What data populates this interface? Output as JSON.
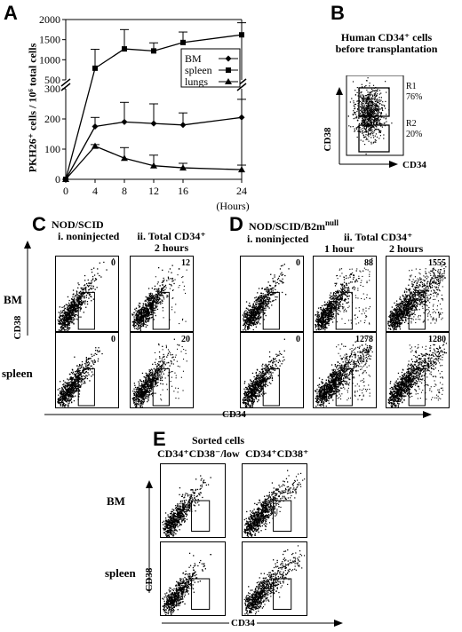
{
  "panelA": {
    "label": "A",
    "ylabel": "PKH26⁺ cells / 10⁶ total cells",
    "xunit": "(Hours)",
    "yticks_top": [
      "2000",
      "1500",
      "1000",
      "500"
    ],
    "yticks_bottom": [
      "300",
      "200",
      "100",
      "0"
    ],
    "xticks": [
      "0",
      "4",
      "8",
      "12",
      "16",
      "24"
    ],
    "legend": [
      "BM",
      "spleen",
      "lungs"
    ]
  },
  "chart_data": {
    "type": "line",
    "x": [
      0,
      4,
      8,
      12,
      16,
      24
    ],
    "xlabel": "(Hours)",
    "ylabel": "PKH26+ cells / 10^6 total cells",
    "ylim": [
      0,
      2000
    ],
    "y_axis_break": [
      300,
      500
    ],
    "series": [
      {
        "name": "BM",
        "marker": "diamond",
        "values": [
          0,
          175,
          190,
          185,
          180,
          205
        ],
        "errors": [
          0,
          30,
          65,
          65,
          40,
          60
        ]
      },
      {
        "name": "spleen",
        "marker": "square",
        "values": [
          0,
          790,
          1270,
          1220,
          1430,
          1620
        ],
        "errors": [
          0,
          470,
          480,
          200,
          260,
          300
        ]
      },
      {
        "name": "lungs",
        "marker": "triangle",
        "values": [
          0,
          110,
          70,
          45,
          38,
          32
        ],
        "errors": [
          0,
          5,
          35,
          35,
          15,
          15
        ]
      }
    ]
  },
  "panelB": {
    "label": "B",
    "title_line1": "Human CD34⁺ cells",
    "title_line2": "before transplantation",
    "xaxis": "CD34",
    "yaxis": "CD38",
    "gates": [
      {
        "name": "R1",
        "percent": "76%"
      },
      {
        "name": "R2",
        "percent": "20%"
      }
    ]
  },
  "panelC": {
    "label": "C",
    "title": "NOD/SCID",
    "col1": "i. noninjected",
    "col2_line1": "ii. Total CD34⁺",
    "col2_line2": "2 hours",
    "rows": [
      "BM",
      "spleen"
    ],
    "counts": [
      [
        "0",
        "12"
      ],
      [
        "0",
        "20"
      ]
    ]
  },
  "panelD": {
    "label": "D",
    "title_main": "NOD/SCID/B2m",
    "title_sup": "null",
    "col1": "i. noninjected",
    "col2_line1": "ii. Total CD34⁺",
    "col2a": "1 hour",
    "col2b": "2 hours",
    "counts": [
      [
        "0",
        "88",
        "1555"
      ],
      [
        "0",
        "1278",
        "1280"
      ]
    ]
  },
  "shared_axes": {
    "x": "CD34",
    "y": "CD38"
  },
  "panelE": {
    "label": "E",
    "title": "Sorted cells",
    "col1": "CD34⁺CD38⁻/low",
    "col2": "CD34⁺CD38⁺",
    "rows": [
      "BM",
      "spleen"
    ],
    "yaxis": "CD38",
    "xaxis": "CD34"
  }
}
